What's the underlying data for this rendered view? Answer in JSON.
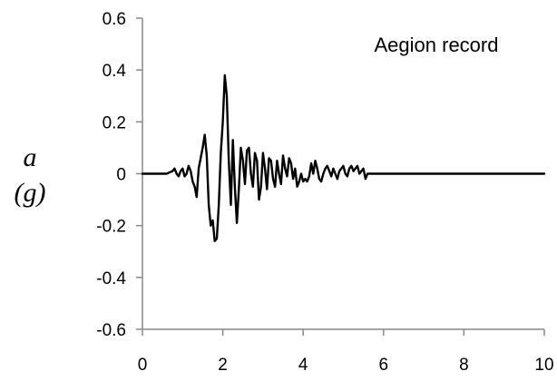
{
  "chart_data": {
    "type": "line",
    "title": "",
    "annotation": "Aegion record",
    "xlabel": "",
    "ylabel_line1": "a",
    "ylabel_line2": "(g)",
    "xlim": [
      0,
      10
    ],
    "ylim": [
      -0.6,
      0.6
    ],
    "xticks": [
      0,
      2,
      4,
      6,
      8,
      10
    ],
    "yticks": [
      0.6,
      0.4,
      0.2,
      0,
      -0.2,
      -0.4,
      -0.6
    ],
    "xtick_labels": [
      "0",
      "2",
      "4",
      "6",
      "8",
      "10"
    ],
    "ytick_labels": [
      "0.6",
      "0.4",
      "0.2",
      "0",
      "-0.2",
      "-0.4",
      "-0.6"
    ],
    "grid": false,
    "series": [
      {
        "color": "#000000",
        "x": [
          0,
          0.6,
          0.75,
          0.8,
          0.85,
          0.9,
          0.95,
          1.0,
          1.05,
          1.1,
          1.15,
          1.2,
          1.25,
          1.3,
          1.35,
          1.4,
          1.45,
          1.5,
          1.55,
          1.6,
          1.65,
          1.7,
          1.75,
          1.8,
          1.85,
          1.9,
          1.95,
          2.0,
          2.05,
          2.1,
          2.15,
          2.2,
          2.25,
          2.3,
          2.35,
          2.4,
          2.45,
          2.5,
          2.55,
          2.6,
          2.65,
          2.7,
          2.75,
          2.8,
          2.85,
          2.9,
          2.95,
          3.0,
          3.05,
          3.1,
          3.15,
          3.2,
          3.25,
          3.3,
          3.35,
          3.4,
          3.45,
          3.5,
          3.55,
          3.6,
          3.65,
          3.7,
          3.75,
          3.8,
          3.85,
          3.9,
          3.95,
          4.0,
          4.05,
          4.1,
          4.15,
          4.2,
          4.25,
          4.3,
          4.35,
          4.4,
          4.45,
          4.5,
          4.55,
          4.6,
          4.65,
          4.7,
          4.75,
          4.8,
          4.85,
          4.9,
          4.95,
          5.0,
          5.05,
          5.1,
          5.15,
          5.2,
          5.25,
          5.3,
          5.35,
          5.4,
          5.45,
          5.5,
          5.55,
          5.6,
          5.65,
          5.7,
          6,
          8,
          10
        ],
        "values": [
          0,
          0,
          0.01,
          0.02,
          0.0,
          -0.01,
          0.01,
          0.02,
          -0.01,
          0.0,
          0.03,
          0.01,
          -0.03,
          -0.05,
          -0.09,
          0.02,
          0.06,
          0.1,
          0.15,
          0.07,
          -0.12,
          -0.2,
          -0.18,
          -0.26,
          -0.25,
          -0.12,
          0.08,
          0.2,
          0.38,
          0.3,
          0.05,
          -0.12,
          0.13,
          -0.05,
          -0.19,
          -0.06,
          0.1,
          0.05,
          -0.04,
          0.09,
          0.1,
          0.0,
          -0.05,
          0.08,
          0.05,
          -0.1,
          -0.05,
          0.08,
          0.02,
          -0.06,
          0.06,
          0.05,
          -0.02,
          -0.05,
          0.05,
          0.0,
          -0.04,
          0.07,
          0.02,
          -0.01,
          0.06,
          0.04,
          -0.02,
          0.02,
          -0.05,
          -0.03,
          0.0,
          -0.03,
          -0.02,
          -0.03,
          -0.01,
          0.04,
          0.0,
          0.05,
          0.02,
          -0.02,
          -0.03,
          0.0,
          0.02,
          0.03,
          0.01,
          -0.01,
          0.02,
          0.0,
          -0.02,
          0.01,
          0.02,
          0.03,
          0.0,
          -0.01,
          0.02,
          0.03,
          0.01,
          0.02,
          0.03,
          0.0,
          0.01,
          0.02,
          -0.02,
          0.0,
          0.0,
          0.0,
          0,
          0,
          0
        ]
      }
    ]
  }
}
